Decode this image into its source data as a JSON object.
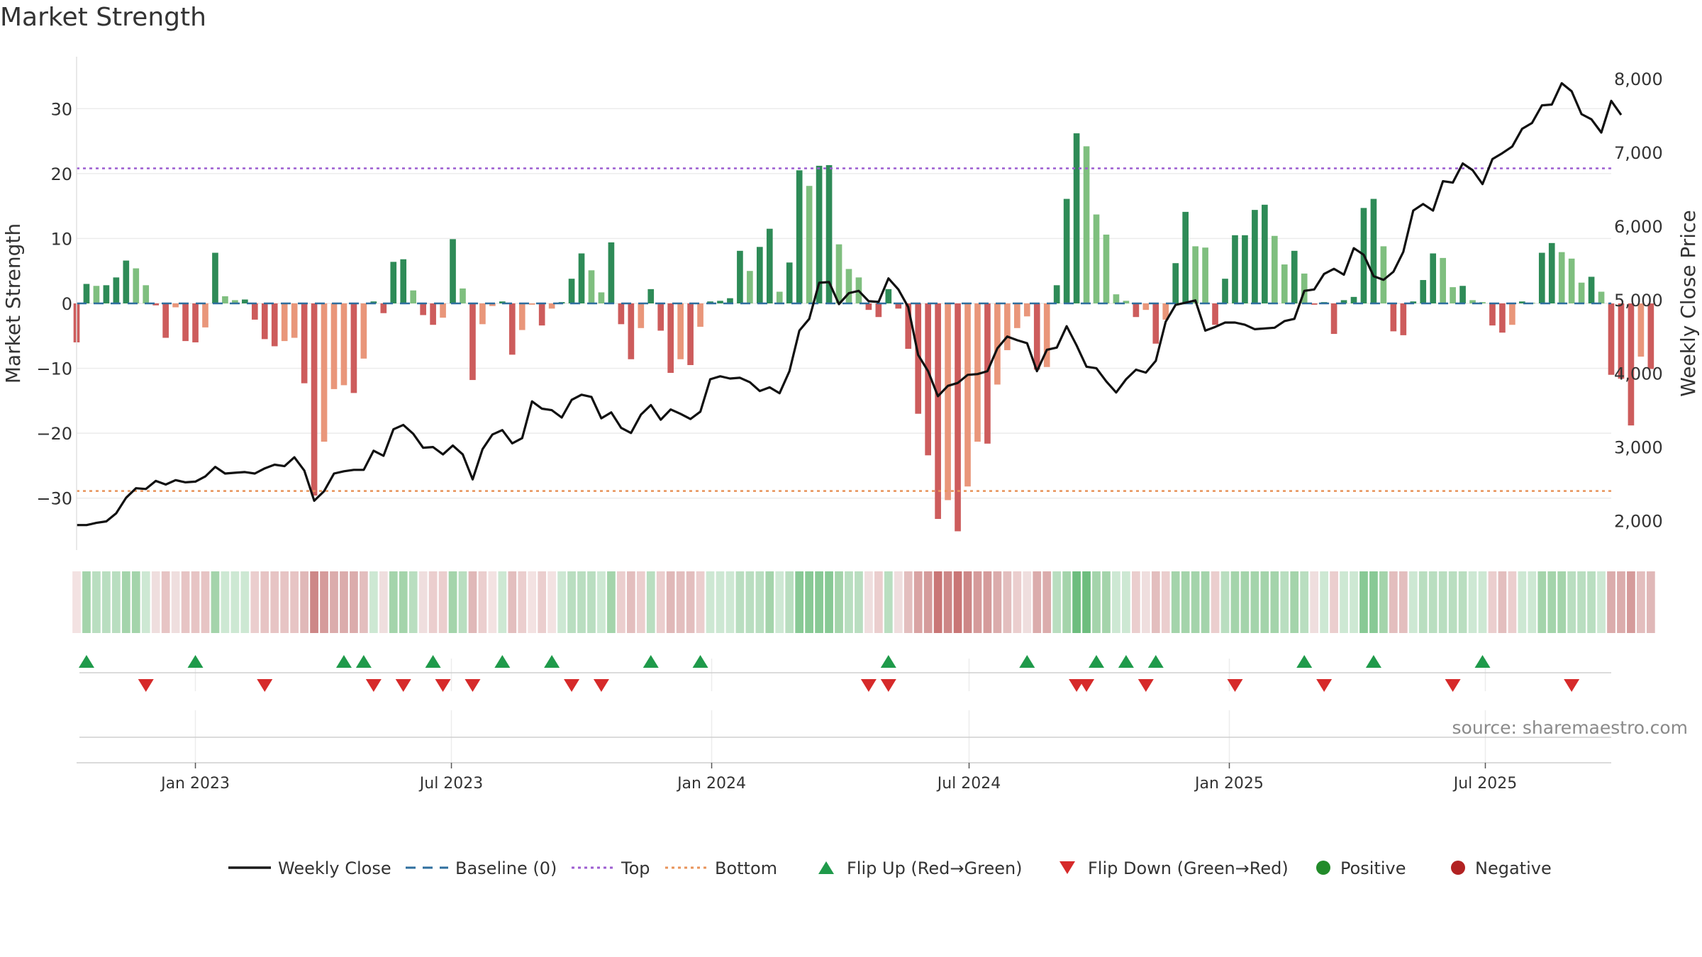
{
  "chart_data": {
    "type": "bar",
    "title": "Market Strength",
    "source": "source: sharemaestro.com",
    "ylabel_left": "Market Strength",
    "ylabel_right": "Weekly Close Price",
    "ylim_left": [
      -38,
      38
    ],
    "ylim_right": [
      1600,
      8300
    ],
    "yticks_left": [
      30,
      20,
      10,
      0,
      -10,
      -20,
      -30
    ],
    "ytick_labels_left": [
      "30",
      "20",
      "10",
      "0",
      "−10",
      "−20",
      "−30"
    ],
    "yticks_right": [
      8000,
      7000,
      6000,
      5000,
      4000,
      3000,
      2000
    ],
    "ytick_labels_right": [
      "8,000",
      "7,000",
      "6,000",
      "5,000",
      "4,000",
      "3,000",
      "2,000"
    ],
    "top_line": 20.8,
    "bottom_line": -28.9,
    "x_start": "2022-10-09",
    "x_end": "2025-09-28",
    "xticks": [
      "2023-01-01",
      "2023-07-01",
      "2024-01-01",
      "2024-07-01",
      "2025-01-01",
      "2025-07-01"
    ],
    "xtick_labels": [
      "Jan 2023",
      "Jul 2023",
      "Jan 2024",
      "Jul 2024",
      "Jan 2025",
      "Jul 2025"
    ],
    "strength": [
      -6.0,
      3.0,
      2.7,
      2.8,
      4.0,
      6.6,
      5.4,
      2.8,
      -0.3,
      -5.3,
      -0.6,
      -5.8,
      -6.0,
      -3.7,
      7.8,
      1.1,
      0.5,
      0.6,
      -2.5,
      -5.5,
      -6.6,
      -5.8,
      -5.3,
      -12.3,
      -29.6,
      -21.3,
      -13.2,
      -12.6,
      -13.8,
      -8.5,
      0.3,
      -1.5,
      6.4,
      6.8,
      2.0,
      -1.8,
      -3.3,
      -2.2,
      9.9,
      2.3,
      -11.8,
      -3.2,
      -0.4,
      0.3,
      -7.9,
      -4.1,
      -0.2,
      -3.4,
      -0.8,
      0.2,
      3.8,
      7.7,
      5.1,
      1.7,
      9.4,
      -3.2,
      -8.6,
      -3.8,
      2.2,
      -4.2,
      -10.7,
      -8.6,
      -9.5,
      -3.6,
      0.3,
      0.4,
      0.8,
      8.1,
      5.0,
      8.7,
      11.5,
      1.8,
      6.3,
      20.5,
      18.1,
      21.2,
      21.3,
      9.1,
      5.3,
      4.0,
      -1.0,
      -2.1,
      2.2,
      -0.8,
      -7.0,
      -17.0,
      -23.4,
      -33.2,
      -30.3,
      -35.1,
      -28.2,
      -21.3,
      -21.6,
      -12.5,
      -7.2,
      -3.8,
      -2.0,
      -10.2,
      -9.8,
      2.8,
      16.1,
      26.2,
      24.2,
      13.7,
      10.6,
      1.4,
      0.4,
      -2.1,
      -1.0,
      -6.2,
      -2.5,
      6.2,
      14.1,
      8.8,
      8.6,
      -3.3,
      3.8,
      10.5,
      10.5,
      14.4,
      15.2,
      10.4,
      6.0,
      8.1,
      4.6,
      -0.2,
      0.2,
      -4.7,
      0.5,
      1.0,
      14.7,
      16.1,
      8.8,
      -4.3,
      -4.9,
      0.3,
      3.6,
      7.7,
      7.0,
      2.5,
      2.7,
      0.5,
      0.2,
      -3.4,
      -4.5,
      -3.3,
      0.3,
      0.1,
      7.8,
      9.3,
      7.9,
      6.9,
      3.2,
      4.1,
      1.8,
      -11.0,
      -11.6,
      -18.8,
      -8.2,
      -10.1
    ],
    "weekly_close": [
      1940,
      1940,
      1970,
      1990,
      2100,
      2310,
      2440,
      2430,
      2540,
      2490,
      2550,
      2520,
      2530,
      2600,
      2730,
      2640,
      2650,
      2660,
      2640,
      2710,
      2760,
      2740,
      2860,
      2680,
      2270,
      2400,
      2640,
      2670,
      2690,
      2690,
      2950,
      2880,
      3240,
      3300,
      3180,
      2990,
      3000,
      2900,
      3020,
      2900,
      2560,
      2970,
      3170,
      3230,
      3050,
      3120,
      3620,
      3520,
      3500,
      3400,
      3640,
      3710,
      3680,
      3390,
      3470,
      3260,
      3190,
      3440,
      3570,
      3370,
      3510,
      3450,
      3380,
      3480,
      3920,
      3960,
      3930,
      3940,
      3880,
      3760,
      3810,
      3730,
      4030,
      4580,
      4740,
      5230,
      5240,
      4940,
      5090,
      5120,
      4980,
      4970,
      5290,
      5140,
      4900,
      4250,
      4030,
      3690,
      3830,
      3870,
      3980,
      3990,
      4030,
      4340,
      4500,
      4450,
      4410,
      4030,
      4320,
      4350,
      4640,
      4380,
      4090,
      4070,
      3890,
      3740,
      3920,
      4050,
      4010,
      4170,
      4700,
      4930,
      4960,
      4990,
      4580,
      4630,
      4690,
      4690,
      4660,
      4600,
      4610,
      4620,
      4710,
      4740,
      5120,
      5140,
      5350,
      5420,
      5340,
      5700,
      5610,
      5320,
      5270,
      5380,
      5650,
      6210,
      6300,
      6210,
      6610,
      6590,
      6850,
      6760,
      6570,
      6910,
      6990,
      7080,
      7320,
      7400,
      7640,
      7650,
      7940,
      7830,
      7520,
      7450,
      7270,
      7700,
      7510
    ],
    "heat_colors": [
      "#f3e2e2",
      "#a4d4ab",
      "#b9dec0",
      "#b9dec0",
      "#b9dec0",
      "#a4d4ab",
      "#a4d4ab",
      "#cde8d3",
      "#efdede",
      "#e7c4c4",
      "#efdede",
      "#e7c4c4",
      "#e7c4c4",
      "#e7c4c4",
      "#a4d4ab",
      "#cde8d3",
      "#cde8d3",
      "#cde8d3",
      "#ebcece",
      "#e7c4c4",
      "#e7c4c4",
      "#e7c4c4",
      "#e7c4c4",
      "#e0b8b8",
      "#cd8787",
      "#d59b9b",
      "#dbacac",
      "#dbacac",
      "#dbacac",
      "#e3bebe",
      "#cde8d3",
      "#efdede",
      "#a4d4ab",
      "#a4d4ab",
      "#b9dec0",
      "#efdede",
      "#ebcece",
      "#ebcece",
      "#a4d4ab",
      "#b9dec0",
      "#e0b8b8",
      "#ebcece",
      "#f3e2e2",
      "#cde8d3",
      "#e3bebe",
      "#ebcece",
      "#f3e2e2",
      "#ebcece",
      "#f3e2e2",
      "#cde8d3",
      "#b9dec0",
      "#b9dec0",
      "#b9dec0",
      "#cde8d3",
      "#a4d4ab",
      "#ebcece",
      "#e3bebe",
      "#ebcece",
      "#b9dec0",
      "#ebcece",
      "#e0b8b8",
      "#e3bebe",
      "#e3bebe",
      "#ebcece",
      "#cde8d3",
      "#cde8d3",
      "#cde8d3",
      "#b9dec0",
      "#b9dec0",
      "#b9dec0",
      "#a4d4ab",
      "#cde8d3",
      "#b9dec0",
      "#88c995",
      "#88c995",
      "#88c995",
      "#88c995",
      "#a4d4ab",
      "#b9dec0",
      "#b9dec0",
      "#efdede",
      "#ebcece",
      "#b9dec0",
      "#efdede",
      "#e3bebe",
      "#d9a3a3",
      "#d59b9b",
      "#c97676",
      "#cd8787",
      "#c97676",
      "#cd8787",
      "#d59b9b",
      "#d59b9b",
      "#dbacac",
      "#e3bebe",
      "#ebcece",
      "#efdede",
      "#dbacac",
      "#dbacac",
      "#b9dec0",
      "#a4d4ab",
      "#6dbd7e",
      "#6dbd7e",
      "#a4d4ab",
      "#a4d4ab",
      "#cde8d3",
      "#cde8d3",
      "#ebcece",
      "#efdede",
      "#e3bebe",
      "#ebcece",
      "#a4d4ab",
      "#a4d4ab",
      "#a4d4ab",
      "#a4d4ab",
      "#ebcece",
      "#b9dec0",
      "#a4d4ab",
      "#a4d4ab",
      "#a4d4ab",
      "#a4d4ab",
      "#a4d4ab",
      "#b9dec0",
      "#a4d4ab",
      "#b9dec0",
      "#efdede",
      "#cde8d3",
      "#ebcece",
      "#cde8d3",
      "#cde8d3",
      "#88c995",
      "#88c995",
      "#a4d4ab",
      "#e3bebe",
      "#e3bebe",
      "#cde8d3",
      "#b9dec0",
      "#b9dec0",
      "#b9dec0",
      "#b9dec0",
      "#b9dec0",
      "#cde8d3",
      "#cde8d3",
      "#ebcece",
      "#e3bebe",
      "#ebcece",
      "#cde8d3",
      "#cde8d3",
      "#a4d4ab",
      "#a4d4ab",
      "#a4d4ab",
      "#b9dec0",
      "#b9dec0",
      "#b9dec0",
      "#cde8d3",
      "#dbacac",
      "#dbacac",
      "#d59b9b",
      "#e3bebe",
      "#e0b8b8"
    ],
    "flip_up_dates": [
      "2022-10-16",
      "2023-01-01",
      "2023-04-16",
      "2023-04-30",
      "2023-06-18",
      "2023-08-06",
      "2023-09-10",
      "2023-11-19",
      "2023-12-24",
      "2024-05-05",
      "2024-08-11",
      "2024-09-29",
      "2024-10-20",
      "2024-11-10",
      "2025-02-23",
      "2025-04-13",
      "2025-06-29"
    ],
    "flip_down_dates": [
      "2022-11-27",
      "2023-02-19",
      "2023-05-07",
      "2023-05-28",
      "2023-06-25",
      "2023-07-16",
      "2023-09-24",
      "2023-10-15",
      "2024-04-21",
      "2024-05-05",
      "2024-09-15",
      "2024-09-22",
      "2024-11-03",
      "2025-01-05",
      "2025-03-09",
      "2025-06-08",
      "2025-08-31"
    ],
    "legend": [
      {
        "label": "Weekly Close",
        "symbol": "line",
        "color": "#1a1a1a"
      },
      {
        "label": "Baseline (0)",
        "symbol": "dash",
        "color": "#2e6e9e"
      },
      {
        "label": "Top",
        "symbol": "dot",
        "color": "#9c5dd0"
      },
      {
        "label": "Bottom",
        "symbol": "dot",
        "color": "#e8935a"
      },
      {
        "label": "Flip Up (Red→Green)",
        "symbol": "tri-up",
        "color": "#1f9a4a"
      },
      {
        "label": "Flip Down (Green→Red)",
        "symbol": "tri-down",
        "color": "#d62a2a"
      },
      {
        "label": "Positive",
        "symbol": "circle",
        "color": "#228b2a"
      },
      {
        "label": "Negative",
        "symbol": "circle",
        "color": "#b22222"
      }
    ],
    "colors": {
      "pos_dark": "#2e8b57",
      "pos_light": "#7fbf7f",
      "neg_dark": "#cd5c5c",
      "neg_light": "#e9967a",
      "price_line": "#111111",
      "baseline": "#2e6e9e",
      "top": "#9c5dd0",
      "bottom": "#e8935a",
      "flip_up": "#1f9a4a",
      "flip_down": "#d62a2a",
      "grid": "#ececec"
    }
  }
}
